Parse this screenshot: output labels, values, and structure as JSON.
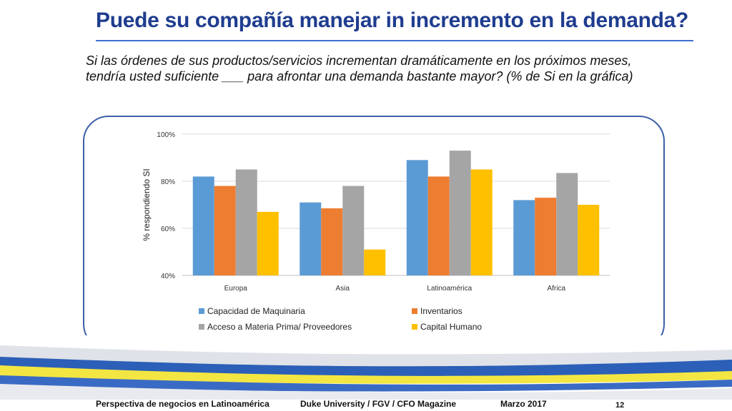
{
  "slide": {
    "title": "Puede su compañía manejar in incremento en la demanda?",
    "question": "Si las órdenes de sus productos/servicios incrementan dramáticamente en los próximos meses, tendría usted suficiente ___ para afrontar una demanda bastante mayor? (% de Si en la gráfica)"
  },
  "footer": {
    "left": "Perspectiva de negocios en Latinoamérica",
    "center": "Duke University / FGV / CFO Magazine",
    "date": "Marzo 2017",
    "page": "12"
  },
  "colors": {
    "title": "#1f3d8f",
    "panel_border": "#3d5fa8"
  },
  "chart_data": {
    "type": "bar",
    "title": "",
    "xlabel": "",
    "ylabel": "% respondiendo SI",
    "ylim": [
      40,
      100
    ],
    "yticks": [
      40,
      60,
      80,
      100
    ],
    "ytick_labels": [
      "40%",
      "60%",
      "80%",
      "100%"
    ],
    "grid": true,
    "legend_position": "bottom",
    "categories": [
      "Europa",
      "Asia",
      "Latinoamérica",
      "Africa"
    ],
    "series": [
      {
        "name": "Capacidad de Maquinaria",
        "color": "#5b9bd5",
        "values": [
          82,
          71,
          89,
          72
        ]
      },
      {
        "name": "Inventarios",
        "color": "#ed7d31",
        "values": [
          78,
          68.5,
          82,
          73
        ]
      },
      {
        "name": "Acceso a Materia Prima/ Proveedores",
        "color": "#a5a5a5",
        "values": [
          85,
          78,
          93,
          83.5
        ]
      },
      {
        "name": "Capital Humano",
        "color": "#ffc000",
        "values": [
          67,
          51,
          85,
          70
        ]
      }
    ]
  }
}
